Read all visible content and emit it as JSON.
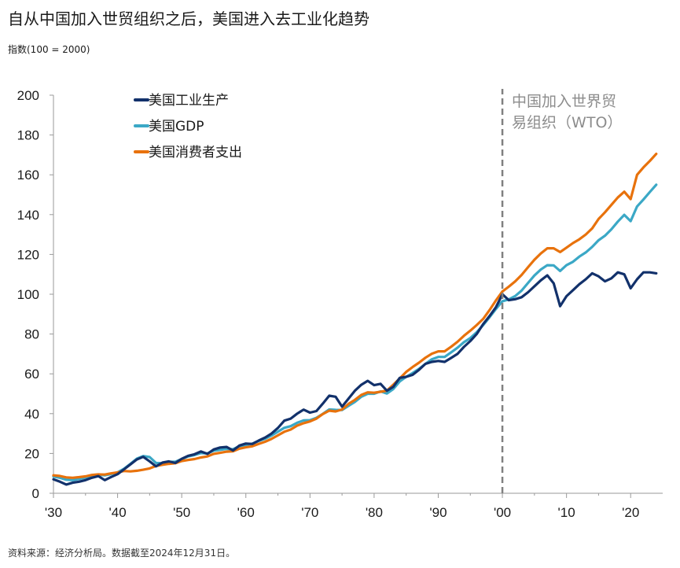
{
  "title": "自从中国加入世贸组织之后，美国进入去工业化趋势",
  "subtitle": "指数(100 = 2000)",
  "source": "资料来源：经济分析局。数据截至2024年12月31日。",
  "colors": {
    "industrial": "#12316b",
    "gdp": "#3ba8c6",
    "consumer": "#e8720c",
    "wto_line": "#808080",
    "wto_text": "#8c8c8c",
    "axis": "#9a9a9a"
  },
  "chart_data": {
    "type": "line",
    "xlim": [
      1930,
      2025
    ],
    "ylim": [
      0,
      200
    ],
    "y_ticks": [
      0,
      20,
      40,
      60,
      80,
      100,
      120,
      140,
      160,
      180,
      200
    ],
    "x_ticks": [
      {
        "value": 1930,
        "label": "'30"
      },
      {
        "value": 1940,
        "label": "'40"
      },
      {
        "value": 1950,
        "label": "'50"
      },
      {
        "value": 1960,
        "label": "'60"
      },
      {
        "value": 1970,
        "label": "'70"
      },
      {
        "value": 1980,
        "label": "'80"
      },
      {
        "value": 1990,
        "label": "'90"
      },
      {
        "value": 2000,
        "label": "'00"
      },
      {
        "value": 2010,
        "label": "'10"
      },
      {
        "value": 2020,
        "label": "'20"
      }
    ],
    "legend_position": "top-left",
    "annotation": {
      "x": 2000,
      "text_lines": [
        "中国加入世界贸",
        "易组织（WTO）"
      ]
    },
    "series": [
      {
        "name": "美国工业生产",
        "color_key": "industrial",
        "x": [
          1930,
          1931,
          1932,
          1933,
          1934,
          1935,
          1936,
          1937,
          1938,
          1939,
          1940,
          1941,
          1942,
          1943,
          1944,
          1945,
          1946,
          1947,
          1948,
          1949,
          1950,
          1951,
          1952,
          1953,
          1954,
          1955,
          1956,
          1957,
          1958,
          1959,
          1960,
          1961,
          1962,
          1963,
          1964,
          1965,
          1966,
          1967,
          1968,
          1969,
          1970,
          1971,
          1972,
          1973,
          1974,
          1975,
          1976,
          1977,
          1978,
          1979,
          1980,
          1981,
          1982,
          1983,
          1984,
          1985,
          1986,
          1987,
          1988,
          1989,
          1990,
          1991,
          1992,
          1993,
          1994,
          1995,
          1996,
          1997,
          1998,
          1999,
          2000,
          2001,
          2002,
          2003,
          2004,
          2005,
          2006,
          2007,
          2008,
          2009,
          2010,
          2011,
          2012,
          2013,
          2014,
          2015,
          2016,
          2017,
          2018,
          2019,
          2020,
          2021,
          2022,
          2023,
          2024
        ],
        "y": [
          7,
          5.8,
          4.4,
          5.3,
          5.8,
          6.6,
          7.8,
          8.6,
          6.6,
          8.2,
          9.6,
          12,
          14.5,
          17,
          18.3,
          16,
          13.5,
          15.4,
          16,
          15.2,
          17.3,
          18.8,
          19.6,
          21,
          19.8,
          22,
          23,
          23.3,
          21.5,
          24,
          25,
          24.8,
          26.5,
          28,
          30,
          32.8,
          36.5,
          37.5,
          40,
          42,
          40.5,
          41.3,
          45,
          49,
          48.5,
          43.5,
          47.5,
          51.5,
          54.5,
          56.5,
          54.3,
          55,
          51.5,
          53.5,
          58,
          58.5,
          59.5,
          62,
          65,
          66,
          66.5,
          66,
          68,
          70,
          73.5,
          76.5,
          80,
          85,
          89,
          93.5,
          100,
          97,
          97.5,
          98.5,
          101,
          104,
          107,
          109.5,
          105.5,
          94,
          99,
          102,
          105,
          107.5,
          110.5,
          109,
          106.5,
          108,
          111,
          110,
          103,
          107.5,
          111,
          111,
          110.5
        ]
      },
      {
        "name": "美国GDP",
        "color_key": "gdp",
        "x": [
          1930,
          1931,
          1932,
          1933,
          1934,
          1935,
          1936,
          1937,
          1938,
          1939,
          1940,
          1941,
          1942,
          1943,
          1944,
          1945,
          1946,
          1947,
          1948,
          1949,
          1950,
          1951,
          1952,
          1953,
          1954,
          1955,
          1956,
          1957,
          1958,
          1959,
          1960,
          1961,
          1962,
          1963,
          1964,
          1965,
          1966,
          1967,
          1968,
          1969,
          1970,
          1971,
          1972,
          1973,
          1974,
          1975,
          1976,
          1977,
          1978,
          1979,
          1980,
          1981,
          1982,
          1983,
          1984,
          1985,
          1986,
          1987,
          1988,
          1989,
          1990,
          1991,
          1992,
          1993,
          1994,
          1995,
          1996,
          1997,
          1998,
          1999,
          2000,
          2001,
          2002,
          2003,
          2004,
          2005,
          2006,
          2007,
          2008,
          2009,
          2010,
          2011,
          2012,
          2013,
          2014,
          2015,
          2016,
          2017,
          2018,
          2019,
          2020,
          2021,
          2022,
          2023,
          2024
        ],
        "y": [
          8.4,
          7.8,
          6.8,
          6.6,
          7.2,
          7.9,
          8.9,
          9.3,
          9,
          9.7,
          10.5,
          12.3,
          14.8,
          17.4,
          18.7,
          18.2,
          15.2,
          15.1,
          15.8,
          15.8,
          17.2,
          18.5,
          19.2,
          20.2,
          20,
          21.4,
          21.8,
          22.3,
          22.1,
          23.7,
          24.3,
          24.9,
          26.3,
          27.4,
          29,
          30.9,
          32.9,
          33.7,
          35.4,
          36.6,
          36.7,
          37.9,
          39.9,
          42.1,
          41.9,
          41.8,
          43.9,
          45.9,
          48.5,
          50,
          50,
          51.2,
          50.1,
          52.4,
          56.2,
          58.5,
          60.4,
          62.5,
          65,
          67.3,
          68.5,
          68.5,
          70.8,
          73.1,
          75.9,
          78,
          80.9,
          84.5,
          88.4,
          92.6,
          96.5,
          97.4,
          99.1,
          101.8,
          105.7,
          109.4,
          112.4,
          114.6,
          114.5,
          111.7,
          114.6,
          116.3,
          118.9,
          121,
          123.8,
          127.1,
          129.4,
          132.6,
          136.5,
          139.9,
          136.7,
          144.1,
          147.6,
          151.4,
          155
        ]
      },
      {
        "name": "美国消费者支出",
        "color_key": "consumer",
        "x": [
          1930,
          1931,
          1932,
          1933,
          1934,
          1935,
          1936,
          1937,
          1938,
          1939,
          1940,
          1941,
          1942,
          1943,
          1944,
          1945,
          1946,
          1947,
          1948,
          1949,
          1950,
          1951,
          1952,
          1953,
          1954,
          1955,
          1956,
          1957,
          1958,
          1959,
          1960,
          1961,
          1962,
          1963,
          1964,
          1965,
          1966,
          1967,
          1968,
          1969,
          1970,
          1971,
          1972,
          1973,
          1974,
          1975,
          1976,
          1977,
          1978,
          1979,
          1980,
          1981,
          1982,
          1983,
          1984,
          1985,
          1986,
          1987,
          1988,
          1989,
          1990,
          1991,
          1992,
          1993,
          1994,
          1995,
          1996,
          1997,
          1998,
          1999,
          2000,
          2001,
          2002,
          2003,
          2004,
          2005,
          2006,
          2007,
          2008,
          2009,
          2010,
          2011,
          2012,
          2013,
          2014,
          2015,
          2016,
          2017,
          2018,
          2019,
          2020,
          2021,
          2022,
          2023,
          2024
        ],
        "y": [
          9,
          8.7,
          8,
          7.8,
          8.1,
          8.5,
          9.2,
          9.5,
          9.4,
          10,
          10.5,
          11.2,
          11,
          11.3,
          11.8,
          12.5,
          13.7,
          14.3,
          14.8,
          15.1,
          16.2,
          16.7,
          17.2,
          18,
          18.5,
          19.8,
          20.3,
          20.9,
          21.1,
          22.4,
          23.1,
          23.6,
          24.8,
          25.9,
          27.3,
          29.1,
          30.9,
          32,
          34,
          35.2,
          36.1,
          37.5,
          39.8,
          41.5,
          41.1,
          42.1,
          44.9,
          46.9,
          49.4,
          50.7,
          50.5,
          51,
          51.6,
          54.6,
          57.7,
          61,
          63.4,
          65.6,
          68.1,
          70.1,
          71.3,
          71.3,
          73.6,
          76.1,
          79.1,
          81.7,
          84.5,
          87.6,
          92,
          96.9,
          101.4,
          103.8,
          106.5,
          109.7,
          113.6,
          117.3,
          120.5,
          123.1,
          123.1,
          121.2,
          123.4,
          125.7,
          127.6,
          130,
          133.1,
          137.8,
          141.2,
          144.9,
          148.6,
          151.5,
          147.8,
          160,
          163.7,
          167,
          170.5
        ]
      }
    ]
  }
}
